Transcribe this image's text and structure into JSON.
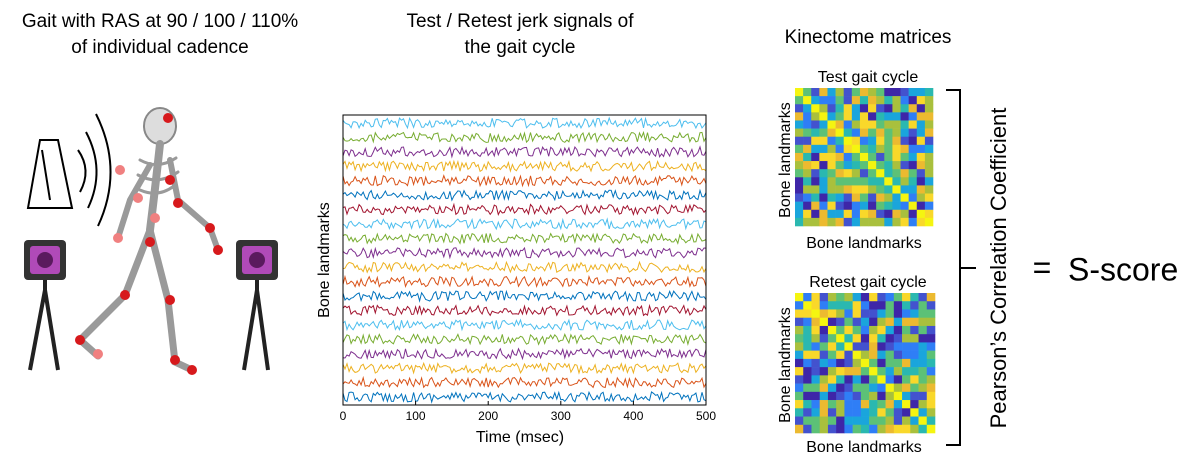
{
  "gait_panel": {
    "title_lines": [
      "Gait with RAS at 90 / 100 / 110%",
      "of individual cadence"
    ]
  },
  "signal_panel": {
    "title_lines": [
      "Test / Retest jerk signals of",
      "the gait cycle"
    ],
    "y_label": "Bone landmarks",
    "x_label": "Time (msec)",
    "xlim": [
      0,
      500
    ],
    "xticks": [
      0,
      100,
      200,
      300,
      400,
      500
    ]
  },
  "kinectome_panel": {
    "title": "Kinectome matrices",
    "matrices": [
      {
        "title": "Test gait cycle",
        "y_label": "Bone landmarks",
        "x_label": "Bone landmarks"
      },
      {
        "title": "Retest gait cycle",
        "y_label": "Bone landmarks",
        "x_label": "Bone landmarks"
      }
    ]
  },
  "result": {
    "method": "Pearson’s Correlation Coefficient",
    "equals": "=",
    "score": "S-score"
  }
}
